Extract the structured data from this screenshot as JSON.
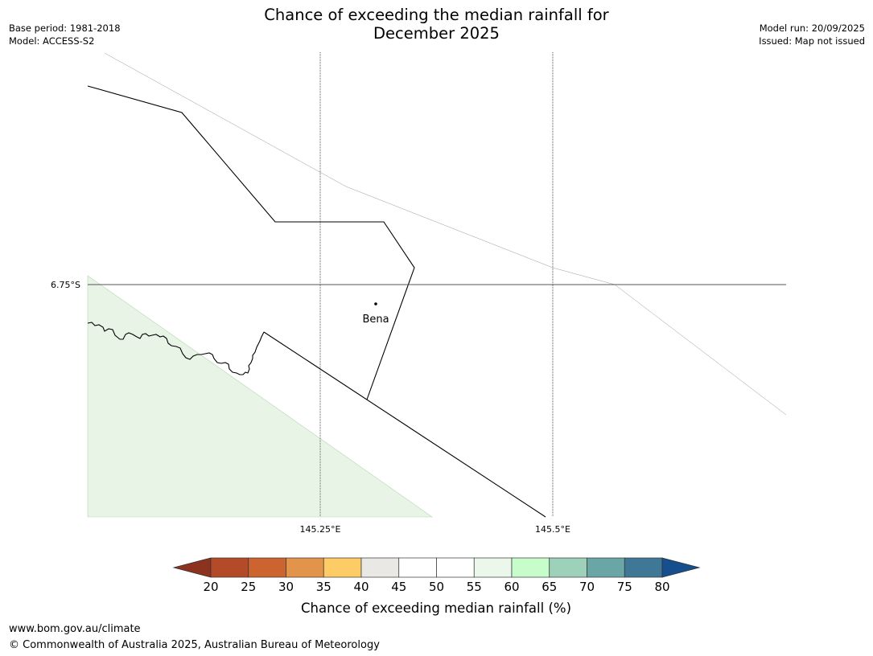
{
  "title": {
    "line1": "Chance of exceeding the median rainfall for",
    "line2": "December 2025"
  },
  "meta_left": {
    "base_period": "Base period: 1981-2018",
    "model": "Model: ACCESS-S2"
  },
  "meta_right": {
    "model_run": "Model run: 20/09/2025",
    "issued": "Issued: Map not issued"
  },
  "map": {
    "lat_labels": [
      "6.75°S"
    ],
    "lon_labels": [
      "145.25°E",
      "145.5°E"
    ],
    "place": "Bena",
    "green_region_color": "#e8f5e6"
  },
  "colorbar": {
    "label": "Chance of exceeding median rainfall (%)",
    "ticks": [
      "20",
      "25",
      "30",
      "35",
      "40",
      "45",
      "50",
      "55",
      "60",
      "65",
      "70",
      "75",
      "80"
    ],
    "under_color": "#8e3220",
    "over_color": "#154f8e",
    "colors": [
      "#b34a28",
      "#cc642f",
      "#e2944a",
      "#fdcc66",
      "#e9e8e4",
      "#ffffff",
      "#ffffff",
      "#eaf7ea",
      "#c7fdcb",
      "#9dd1b9",
      "#6ba6a7",
      "#3f7797"
    ]
  },
  "footer": {
    "url": "www.bom.gov.au/climate",
    "copyright": "© Commonwealth of Australia 2025, Australian Bureau of Meteorology"
  }
}
